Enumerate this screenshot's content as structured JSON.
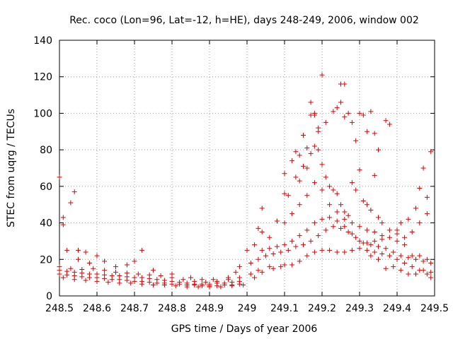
{
  "chart_data": {
    "type": "scatter",
    "title": "Rec. coco (Lon=96, Lat=-12, h=HE), days 248-249, 2006, window 002",
    "xlabel": "GPS time / Days of year 2006",
    "ylabel": "STEC from uqrg / TECUs",
    "xlim": [
      248.5,
      249.5
    ],
    "ylim": [
      0,
      140
    ],
    "xticks": [
      "248.5",
      "248.6",
      "248.7",
      "248.8",
      "248.9",
      "249",
      "249.1",
      "249.2",
      "249.3",
      "249.4",
      "249.5"
    ],
    "yticks": [
      "0",
      "20",
      "40",
      "60",
      "80",
      "100",
      "120",
      "140"
    ],
    "grid": true,
    "marker": "+",
    "color": "#e00000",
    "series": [
      {
        "points": [
          [
            248.5,
            65
          ],
          [
            248.51,
            43
          ],
          [
            248.51,
            39
          ],
          [
            248.53,
            51
          ],
          [
            248.54,
            57
          ],
          [
            248.52,
            25
          ],
          [
            248.55,
            25
          ],
          [
            248.57,
            24
          ],
          [
            248.72,
            25
          ],
          [
            248.7,
            19
          ],
          [
            248.5,
            14
          ],
          [
            248.52,
            13.5
          ],
          [
            248.54,
            13
          ],
          [
            248.56,
            12.5
          ],
          [
            248.58,
            12
          ],
          [
            248.6,
            12
          ],
          [
            248.62,
            11.5
          ],
          [
            248.64,
            11
          ],
          [
            248.66,
            11
          ],
          [
            248.68,
            10.5
          ],
          [
            248.7,
            10
          ],
          [
            248.72,
            10
          ],
          [
            248.74,
            9.5
          ],
          [
            248.76,
            9
          ],
          [
            248.78,
            8.5
          ],
          [
            248.8,
            8
          ],
          [
            248.82,
            7.5
          ],
          [
            248.84,
            7
          ],
          [
            248.86,
            6.5
          ],
          [
            248.88,
            6.5
          ],
          [
            248.9,
            6.5
          ],
          [
            248.92,
            7
          ],
          [
            248.94,
            7
          ],
          [
            248.96,
            7.5
          ],
          [
            248.98,
            8
          ],
          [
            248.5,
            12
          ],
          [
            248.52,
            11.5
          ],
          [
            248.54,
            11
          ],
          [
            248.56,
            10.5
          ],
          [
            248.58,
            10
          ],
          [
            248.6,
            10
          ],
          [
            248.62,
            9.5
          ],
          [
            248.64,
            9
          ],
          [
            248.66,
            9
          ],
          [
            248.68,
            8.5
          ],
          [
            248.7,
            8
          ],
          [
            248.72,
            8
          ],
          [
            248.74,
            7.5
          ],
          [
            248.76,
            7
          ],
          [
            248.78,
            7
          ],
          [
            248.8,
            6.5
          ],
          [
            248.82,
            6.5
          ],
          [
            248.84,
            6
          ],
          [
            248.86,
            6
          ],
          [
            248.88,
            5.5
          ],
          [
            248.9,
            5.5
          ],
          [
            248.92,
            5.5
          ],
          [
            248.94,
            6
          ],
          [
            248.96,
            6
          ],
          [
            248.98,
            6.5
          ],
          [
            248.5,
            16
          ],
          [
            248.53,
            15
          ],
          [
            248.56,
            14.5
          ],
          [
            248.59,
            15
          ],
          [
            248.62,
            14
          ],
          [
            248.65,
            13
          ],
          [
            248.68,
            12.5
          ],
          [
            248.71,
            12
          ],
          [
            248.74,
            11.5
          ],
          [
            248.77,
            11
          ],
          [
            248.8,
            10
          ],
          [
            248.83,
            9
          ],
          [
            248.86,
            8
          ],
          [
            248.89,
            7.5
          ],
          [
            248.92,
            8
          ],
          [
            248.95,
            9
          ],
          [
            248.98,
            10
          ],
          [
            248.51,
            10
          ],
          [
            248.54,
            9
          ],
          [
            248.57,
            8.5
          ],
          [
            248.6,
            8
          ],
          [
            248.63,
            7.5
          ],
          [
            248.66,
            7
          ],
          [
            248.69,
            7
          ],
          [
            248.72,
            6.5
          ],
          [
            248.75,
            6
          ],
          [
            248.78,
            6
          ],
          [
            248.81,
            5.5
          ],
          [
            248.84,
            5
          ],
          [
            248.87,
            5
          ],
          [
            248.9,
            5
          ],
          [
            248.93,
            5
          ],
          [
            248.96,
            5.5
          ],
          [
            248.99,
            6
          ],
          [
            248.55,
            20
          ],
          [
            248.58,
            18
          ],
          [
            248.6,
            22
          ],
          [
            248.62,
            19
          ],
          [
            248.65,
            16
          ],
          [
            248.68,
            17
          ],
          [
            248.75,
            14
          ],
          [
            248.8,
            12
          ],
          [
            248.85,
            10
          ],
          [
            248.88,
            9
          ],
          [
            248.91,
            9
          ],
          [
            248.95,
            10
          ],
          [
            248.97,
            13
          ],
          [
            248.98,
            16
          ],
          [
            249.01,
            12
          ],
          [
            249.02,
            10
          ],
          [
            249.03,
            14
          ],
          [
            249.04,
            13
          ],
          [
            249.06,
            16
          ],
          [
            249.07,
            15
          ],
          [
            249.09,
            16
          ],
          [
            249.1,
            17
          ],
          [
            249.12,
            17
          ],
          [
            249.14,
            19
          ],
          [
            249.16,
            22
          ],
          [
            249.18,
            24
          ],
          [
            249.2,
            25
          ],
          [
            249.22,
            25
          ],
          [
            249.24,
            24
          ],
          [
            249.26,
            24
          ],
          [
            249.28,
            25
          ],
          [
            249.3,
            26
          ],
          [
            249.32,
            25
          ],
          [
            249.34,
            24
          ],
          [
            249.36,
            23
          ],
          [
            249.38,
            22
          ],
          [
            249.4,
            20
          ],
          [
            249.42,
            18
          ],
          [
            249.44,
            16
          ],
          [
            249.46,
            14
          ],
          [
            249.48,
            12
          ],
          [
            249.49,
            10
          ],
          [
            249.01,
            18
          ],
          [
            249.03,
            20
          ],
          [
            249.05,
            22
          ],
          [
            249.07,
            23
          ],
          [
            249.09,
            24
          ],
          [
            249.11,
            25
          ],
          [
            249.13,
            27
          ],
          [
            249.15,
            28
          ],
          [
            249.17,
            30
          ],
          [
            249.19,
            33
          ],
          [
            249.21,
            36
          ],
          [
            249.23,
            38
          ],
          [
            249.25,
            37
          ],
          [
            249.27,
            35
          ],
          [
            249.29,
            32
          ],
          [
            249.31,
            29
          ],
          [
            249.33,
            28
          ],
          [
            249.35,
            27
          ],
          [
            249.37,
            26
          ],
          [
            249.39,
            24
          ],
          [
            249.41,
            22
          ],
          [
            249.43,
            21
          ],
          [
            249.45,
            20
          ],
          [
            249.47,
            19
          ],
          [
            249.49,
            18
          ],
          [
            249.0,
            25
          ],
          [
            249.02,
            28
          ],
          [
            249.04,
            25
          ],
          [
            249.06,
            26
          ],
          [
            249.08,
            27
          ],
          [
            249.1,
            28
          ],
          [
            249.12,
            30
          ],
          [
            249.14,
            33
          ],
          [
            249.16,
            36
          ],
          [
            249.18,
            40
          ],
          [
            249.2,
            42
          ],
          [
            249.22,
            43
          ],
          [
            249.24,
            41
          ],
          [
            249.26,
            38
          ],
          [
            249.28,
            34
          ],
          [
            249.3,
            30
          ],
          [
            249.32,
            29
          ],
          [
            249.34,
            30
          ],
          [
            249.36,
            31
          ],
          [
            249.38,
            32
          ],
          [
            249.4,
            30
          ],
          [
            249.42,
            28
          ],
          [
            249.03,
            37
          ],
          [
            249.04,
            35
          ],
          [
            249.06,
            32
          ],
          [
            249.08,
            41
          ],
          [
            249.1,
            40
          ],
          [
            249.12,
            45
          ],
          [
            249.14,
            50
          ],
          [
            249.16,
            55
          ],
          [
            249.18,
            62
          ],
          [
            249.2,
            58
          ],
          [
            249.22,
            50
          ],
          [
            249.24,
            46
          ],
          [
            249.26,
            42
          ],
          [
            249.28,
            40
          ],
          [
            249.3,
            38
          ],
          [
            249.32,
            36
          ],
          [
            249.34,
            35
          ],
          [
            249.36,
            33
          ],
          [
            249.38,
            36
          ],
          [
            249.4,
            34
          ],
          [
            249.42,
            32
          ],
          [
            249.44,
            35
          ],
          [
            249.46,
            40
          ],
          [
            249.48,
            45
          ],
          [
            249.04,
            48
          ],
          [
            249.08,
            41
          ],
          [
            249.1,
            56
          ],
          [
            249.11,
            55
          ],
          [
            249.13,
            65
          ],
          [
            249.14,
            63
          ],
          [
            249.15,
            71
          ],
          [
            249.16,
            70
          ],
          [
            249.17,
            78
          ],
          [
            249.18,
            82
          ],
          [
            249.19,
            80
          ],
          [
            249.2,
            72
          ],
          [
            249.21,
            65
          ],
          [
            249.22,
            60
          ],
          [
            249.23,
            58
          ],
          [
            249.24,
            56
          ],
          [
            249.25,
            50
          ],
          [
            249.26,
            46
          ],
          [
            249.27,
            44
          ],
          [
            249.28,
            62
          ],
          [
            249.29,
            58
          ],
          [
            249.3,
            69
          ],
          [
            249.31,
            52
          ],
          [
            249.32,
            50
          ],
          [
            249.33,
            47
          ],
          [
            249.34,
            66
          ],
          [
            249.35,
            43
          ],
          [
            249.36,
            40
          ],
          [
            249.1,
            67
          ],
          [
            249.12,
            74
          ],
          [
            249.13,
            79
          ],
          [
            249.14,
            77
          ],
          [
            249.15,
            88
          ],
          [
            249.16,
            81
          ],
          [
            249.17,
            99
          ],
          [
            249.17,
            106
          ],
          [
            249.18,
            99
          ],
          [
            249.18,
            100
          ],
          [
            249.19,
            92
          ],
          [
            249.19,
            90
          ],
          [
            249.2,
            121
          ],
          [
            249.21,
            95
          ],
          [
            249.23,
            101
          ],
          [
            249.24,
            103
          ],
          [
            249.25,
            106
          ],
          [
            249.25,
            116
          ],
          [
            249.26,
            116
          ],
          [
            249.26,
            98
          ],
          [
            249.27,
            100
          ],
          [
            249.28,
            95
          ],
          [
            249.29,
            85
          ],
          [
            249.3,
            100
          ],
          [
            249.31,
            99
          ],
          [
            249.32,
            90
          ],
          [
            249.33,
            101
          ],
          [
            249.34,
            89
          ],
          [
            249.35,
            80
          ],
          [
            249.37,
            96
          ],
          [
            249.38,
            94
          ],
          [
            249.4,
            36
          ],
          [
            249.41,
            40
          ],
          [
            249.43,
            42
          ],
          [
            249.45,
            48
          ],
          [
            249.46,
            59
          ],
          [
            249.47,
            70
          ],
          [
            249.49,
            79
          ],
          [
            249.48,
            54
          ],
          [
            249.44,
            22
          ],
          [
            249.46,
            22
          ],
          [
            249.48,
            20
          ],
          [
            249.47,
            14
          ],
          [
            249.49,
            13
          ],
          [
            249.45,
            12
          ],
          [
            249.43,
            12
          ],
          [
            249.41,
            14
          ],
          [
            249.39,
            16
          ],
          [
            249.37,
            15
          ],
          [
            249.35,
            20
          ],
          [
            249.33,
            22
          ]
        ]
      }
    ]
  }
}
